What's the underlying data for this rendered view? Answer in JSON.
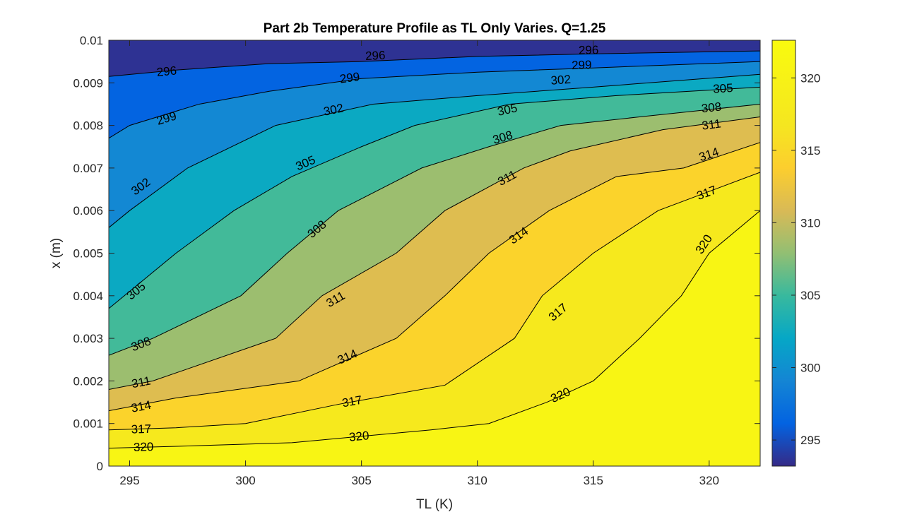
{
  "chart_data": {
    "type": "contour",
    "title": "Part 2b Temperature Profile as TL Only Varies. Q=1.25",
    "xlabel": "TL (K)",
    "ylabel": "x (m)",
    "xlim": [
      294.1,
      322.2
    ],
    "ylim": [
      0,
      0.01
    ],
    "x_ticks": [
      295,
      300,
      305,
      310,
      315,
      320
    ],
    "y_ticks": [
      0,
      0.001,
      0.002,
      0.003,
      0.004,
      0.005,
      0.006,
      0.007,
      0.008,
      0.009,
      0.01
    ],
    "x_tick_labels": [
      "295",
      "300",
      "305",
      "310",
      "315",
      "320"
    ],
    "y_tick_labels": [
      "0",
      "0.001",
      "0.002",
      "0.003",
      "0.004",
      "0.005",
      "0.006",
      "0.007",
      "0.008",
      "0.009",
      "0.01"
    ],
    "colorbar": {
      "colormap": "parula",
      "limits": [
        293.2,
        322.6
      ],
      "ticks": [
        295,
        300,
        305,
        310,
        315,
        320
      ],
      "tick_labels": [
        "295",
        "300",
        "305",
        "310",
        "315",
        "320"
      ]
    },
    "contour_levels": [
      296,
      299,
      302,
      305,
      308,
      311,
      314,
      317,
      320
    ],
    "contours": [
      {
        "level": 296,
        "points": [
          [
            294.1,
            0.00915
          ],
          [
            297,
            0.0093
          ],
          [
            301,
            0.00945
          ],
          [
            305,
            0.0095
          ],
          [
            310,
            0.00962
          ],
          [
            315,
            0.00968
          ],
          [
            322.2,
            0.00975
          ]
        ],
        "labels": [
          [
            296.6,
            0.00925,
            "296"
          ],
          [
            305.6,
            0.00962,
            "296"
          ],
          [
            314.8,
            0.00975,
            "296"
          ]
        ]
      },
      {
        "level": 299,
        "points": [
          [
            294.1,
            0.0077
          ],
          [
            295,
            0.008
          ],
          [
            298,
            0.0085
          ],
          [
            301,
            0.0088
          ],
          [
            305,
            0.0091
          ],
          [
            310,
            0.00925
          ],
          [
            315,
            0.00935
          ],
          [
            322.2,
            0.0095
          ]
        ],
        "labels": [
          [
            296.6,
            0.00815,
            "299"
          ],
          [
            304.5,
            0.0091,
            "299"
          ],
          [
            314.5,
            0.0094,
            "299"
          ]
        ]
      },
      {
        "level": 302,
        "points": [
          [
            294.1,
            0.0056
          ],
          [
            295,
            0.006
          ],
          [
            297.5,
            0.007
          ],
          [
            301.3,
            0.008
          ],
          [
            305.5,
            0.0085
          ],
          [
            310,
            0.0087
          ],
          [
            315,
            0.0089
          ],
          [
            322.2,
            0.0092
          ]
        ],
        "labels": [
          [
            295.5,
            0.00655,
            "302"
          ],
          [
            303.8,
            0.00835,
            "302"
          ],
          [
            313.6,
            0.00905,
            "302"
          ]
        ]
      },
      {
        "level": 305,
        "points": [
          [
            294.1,
            0.0037
          ],
          [
            297,
            0.005
          ],
          [
            299.5,
            0.006
          ],
          [
            302,
            0.0068
          ],
          [
            305,
            0.0075
          ],
          [
            307.3,
            0.008
          ],
          [
            311.4,
            0.0085
          ],
          [
            316,
            0.0087
          ],
          [
            322.2,
            0.0089
          ]
        ],
        "labels": [
          [
            295.3,
            0.0041,
            "305"
          ],
          [
            302.6,
            0.0071,
            "305"
          ],
          [
            311.3,
            0.00835,
            "305"
          ],
          [
            320.6,
            0.00885,
            "305"
          ]
        ]
      },
      {
        "level": 308,
        "points": [
          [
            294.1,
            0.0026
          ],
          [
            296,
            0.003
          ],
          [
            299.8,
            0.004
          ],
          [
            301.8,
            0.005
          ],
          [
            304,
            0.006
          ],
          [
            307.6,
            0.007
          ],
          [
            310.5,
            0.0075
          ],
          [
            313.6,
            0.008
          ],
          [
            317,
            0.0082
          ],
          [
            322.2,
            0.0085
          ]
        ],
        "labels": [
          [
            295.5,
            0.00285,
            "308"
          ],
          [
            303.1,
            0.00555,
            "308"
          ],
          [
            311.1,
            0.0077,
            "308"
          ],
          [
            320.1,
            0.0084,
            "308"
          ]
        ]
      },
      {
        "level": 311,
        "points": [
          [
            294.1,
            0.0018
          ],
          [
            296,
            0.002
          ],
          [
            301.3,
            0.003
          ],
          [
            303.3,
            0.004
          ],
          [
            306.5,
            0.005
          ],
          [
            308.6,
            0.006
          ],
          [
            312,
            0.007
          ],
          [
            314,
            0.0074
          ],
          [
            318,
            0.0079
          ],
          [
            322.2,
            0.0082
          ]
        ],
        "labels": [
          [
            295.5,
            0.00195,
            "311"
          ],
          [
            303.9,
            0.0039,
            "311"
          ],
          [
            311.3,
            0.00675,
            "311"
          ],
          [
            320.1,
            0.008,
            "311"
          ]
        ]
      },
      {
        "level": 314,
        "points": [
          [
            294.1,
            0.0013
          ],
          [
            297,
            0.0016
          ],
          [
            302.3,
            0.002
          ],
          [
            306.5,
            0.003
          ],
          [
            308.6,
            0.004
          ],
          [
            310.5,
            0.005
          ],
          [
            313.1,
            0.006
          ],
          [
            316,
            0.0068
          ],
          [
            318.9,
            0.007
          ],
          [
            322.2,
            0.0076
          ]
        ],
        "labels": [
          [
            295.5,
            0.00138,
            "314"
          ],
          [
            304.4,
            0.00255,
            "314"
          ],
          [
            311.8,
            0.0054,
            "314"
          ],
          [
            320,
            0.0073,
            "314"
          ]
        ]
      },
      {
        "level": 317,
        "points": [
          [
            294.1,
            0.00085
          ],
          [
            297,
            0.0009
          ],
          [
            300,
            0.001
          ],
          [
            304,
            0.00145
          ],
          [
            308.6,
            0.0019
          ],
          [
            311.6,
            0.003
          ],
          [
            312.8,
            0.004
          ],
          [
            315,
            0.005
          ],
          [
            317.8,
            0.006
          ],
          [
            322.2,
            0.0069
          ]
        ],
        "labels": [
          [
            295.5,
            0.00085,
            "317"
          ],
          [
            304.6,
            0.0015,
            "317"
          ],
          [
            313.5,
            0.0036,
            "317"
          ],
          [
            319.9,
            0.0064,
            "317"
          ]
        ]
      },
      {
        "level": 320,
        "points": [
          [
            294.1,
            0.00042
          ],
          [
            298,
            0.00048
          ],
          [
            302,
            0.00055
          ],
          [
            308,
            0.00085
          ],
          [
            310.5,
            0.001
          ],
          [
            313,
            0.0015
          ],
          [
            315,
            0.002
          ],
          [
            317,
            0.003
          ],
          [
            318.8,
            0.004
          ],
          [
            320,
            0.005
          ],
          [
            322.2,
            0.006
          ]
        ],
        "labels": [
          [
            295.6,
            0.00043,
            "320"
          ],
          [
            304.9,
            0.00068,
            "320"
          ],
          [
            313.6,
            0.00165,
            "320"
          ],
          [
            319.8,
            0.0052,
            "320"
          ]
        ]
      }
    ]
  }
}
